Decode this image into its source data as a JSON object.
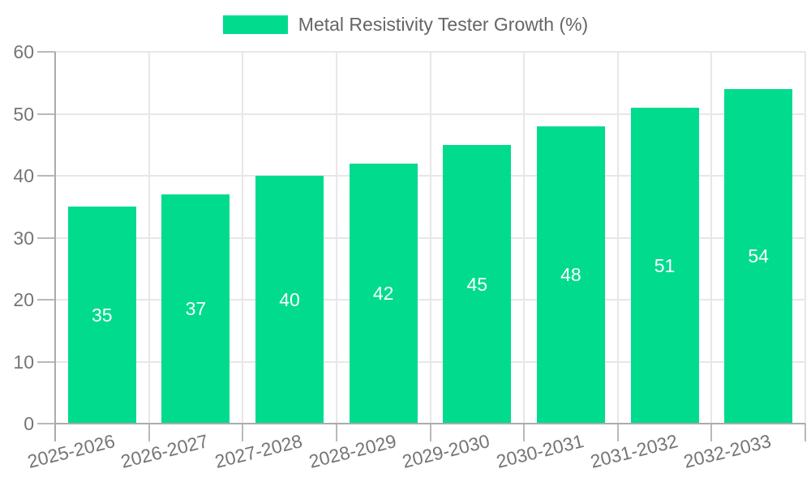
{
  "chart_data": {
    "type": "bar",
    "title": "",
    "legend": "Metal Resistivity Tester Growth (%)",
    "legend_position": "top",
    "categories": [
      "2025-2026",
      "2026-2027",
      "2027-2028",
      "2028-2029",
      "2029-2030",
      "2030-2031",
      "2031-2032",
      "2032-2033"
    ],
    "values": [
      35,
      37,
      40,
      42,
      45,
      48,
      51,
      54
    ],
    "xlabel": "",
    "ylabel": "",
    "ylim": [
      0,
      60
    ],
    "yticks": [
      0,
      10,
      20,
      30,
      40,
      50,
      60
    ],
    "grid": true,
    "bar_color": "#00DB8E",
    "bar_label_color": "#ffffff",
    "grid_color": "#e7e7e7",
    "tick_color": "#b9b9b9",
    "axis_color": "#ababab",
    "tick_text_color": "#757575",
    "legend_text_color": "#666666",
    "background_color": "#ffffff"
  }
}
